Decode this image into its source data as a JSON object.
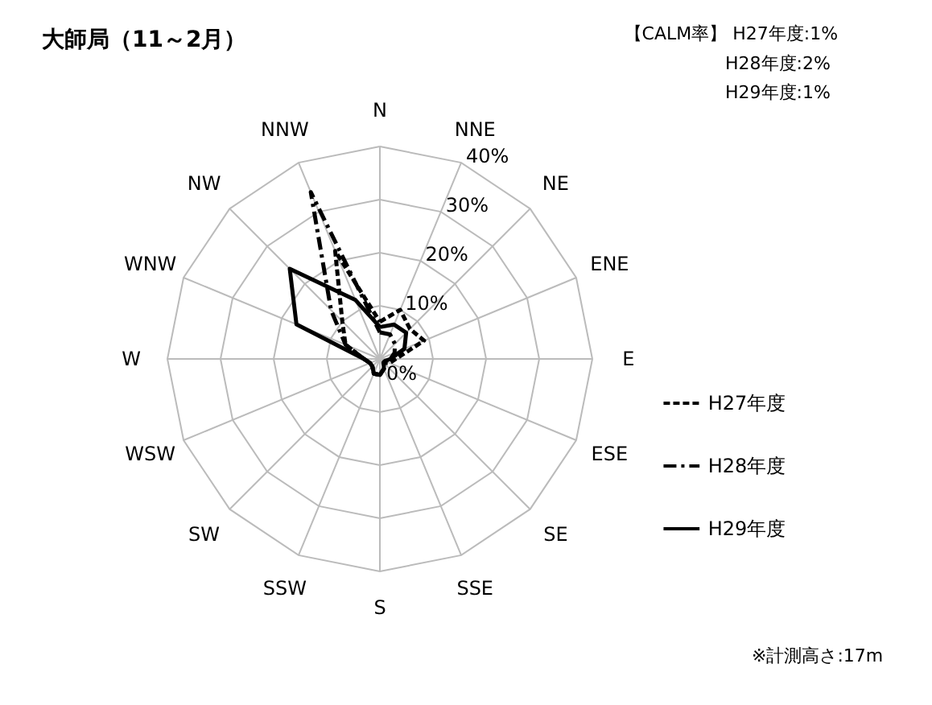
{
  "chart_data": {
    "type": "radar",
    "title": "大師局（11～2月）",
    "categories": [
      "N",
      "NNE",
      "NE",
      "ENE",
      "E",
      "ESE",
      "SE",
      "SSE",
      "S",
      "SSW",
      "SW",
      "WSW",
      "W",
      "WNW",
      "NW",
      "NNW"
    ],
    "series": [
      {
        "name": "H27年度",
        "color": "#000000",
        "line_style": "dashed",
        "values": [
          7,
          10,
          8,
          9,
          3,
          2,
          1,
          2,
          3,
          3,
          2,
          2,
          3,
          7,
          10,
          22
        ]
      },
      {
        "name": "H28年度",
        "color": "#000000",
        "line_style": "dashdot",
        "values": [
          5,
          5,
          4,
          3,
          2,
          1,
          1,
          2,
          3,
          3,
          2,
          2,
          3,
          7,
          13,
          34
        ]
      },
      {
        "name": "H29年度",
        "color": "#000000",
        "line_style": "solid",
        "values": [
          6,
          7,
          7,
          5,
          2,
          1,
          1,
          2,
          3,
          3,
          2,
          2,
          3,
          17,
          24,
          12
        ]
      }
    ],
    "ylim": [
      0,
      40
    ],
    "yticks": [
      {
        "value": 0,
        "label": "0%"
      },
      {
        "value": 10,
        "label": "10%"
      },
      {
        "value": 20,
        "label": "20%"
      },
      {
        "value": 30,
        "label": "30%"
      },
      {
        "value": 40,
        "label": "40%"
      }
    ],
    "grid": true,
    "legend": "right",
    "annotations": [
      "【CALM率】 H27年度:1%",
      "H28年度:2%",
      "H29年度:1%",
      "※計測高さ:17m"
    ]
  }
}
